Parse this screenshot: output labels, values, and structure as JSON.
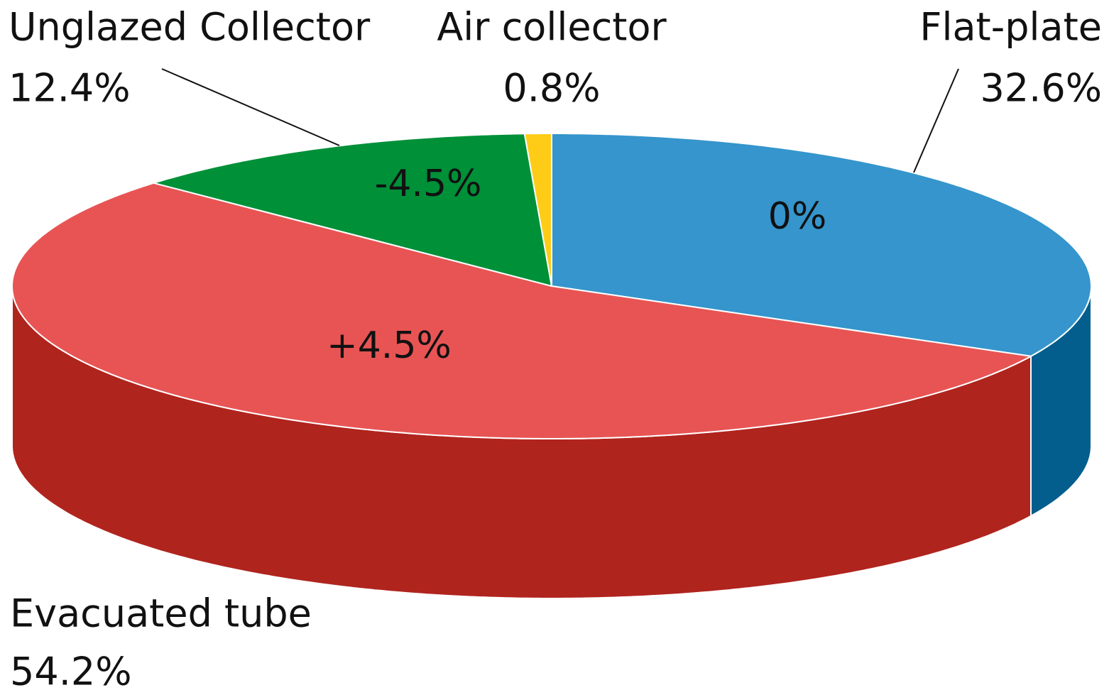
{
  "chart_data": {
    "type": "pie",
    "categories": [
      "Flat-plate",
      "Evacuated tube",
      "Unglazed Collector",
      "Air collector"
    ],
    "values": [
      32.6,
      54.2,
      12.4,
      0.8
    ],
    "value_labels": [
      "32.6%",
      "54.2%",
      "12.4%",
      "0.8%"
    ],
    "colors": [
      "#3595cc",
      "#e85454",
      "#009038",
      "#fecc17"
    ],
    "side_colors": [
      "#035e8e",
      "#b0241e",
      "#006a28",
      "#c9a010"
    ],
    "annotations": [
      "0%",
      "+4.5%",
      "-4.5%",
      null
    ]
  }
}
